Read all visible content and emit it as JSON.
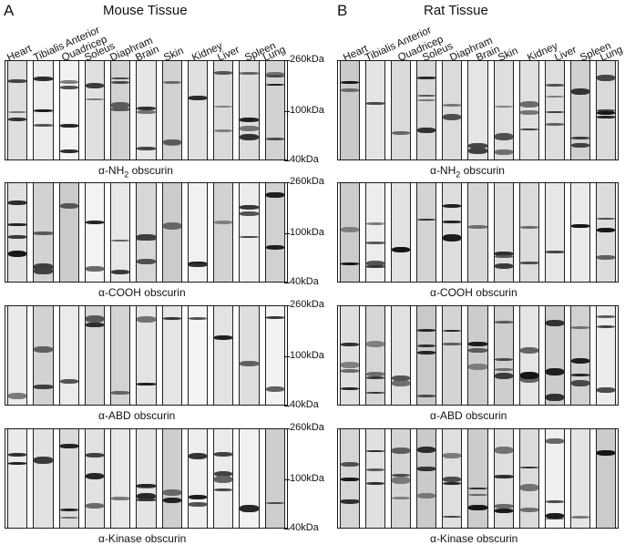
{
  "panels": [
    {
      "letter": "A",
      "title": "Mouse Tissue"
    },
    {
      "letter": "B",
      "title": "Rat Tissue"
    }
  ],
  "lane_labels": [
    "Heart",
    "Tibialis Anterior",
    "Quadricep",
    "Soleus",
    "Diaphram",
    "Brain",
    "Skin",
    "Kidney",
    "Liver",
    "Spleen",
    "Lung"
  ],
  "mw_markers": [
    "260kDa",
    "100kDa",
    "40kDa"
  ],
  "captions": [
    {
      "prefix": "α-NH",
      "sub": "2",
      "suffix": " obscurin"
    },
    {
      "prefix": "α-COOH obscurin",
      "sub": "",
      "suffix": ""
    },
    {
      "prefix": "α-ABD obscurin",
      "sub": "",
      "suffix": ""
    },
    {
      "prefix": "α-Kinase obscurin",
      "sub": "",
      "suffix": ""
    }
  ]
}
